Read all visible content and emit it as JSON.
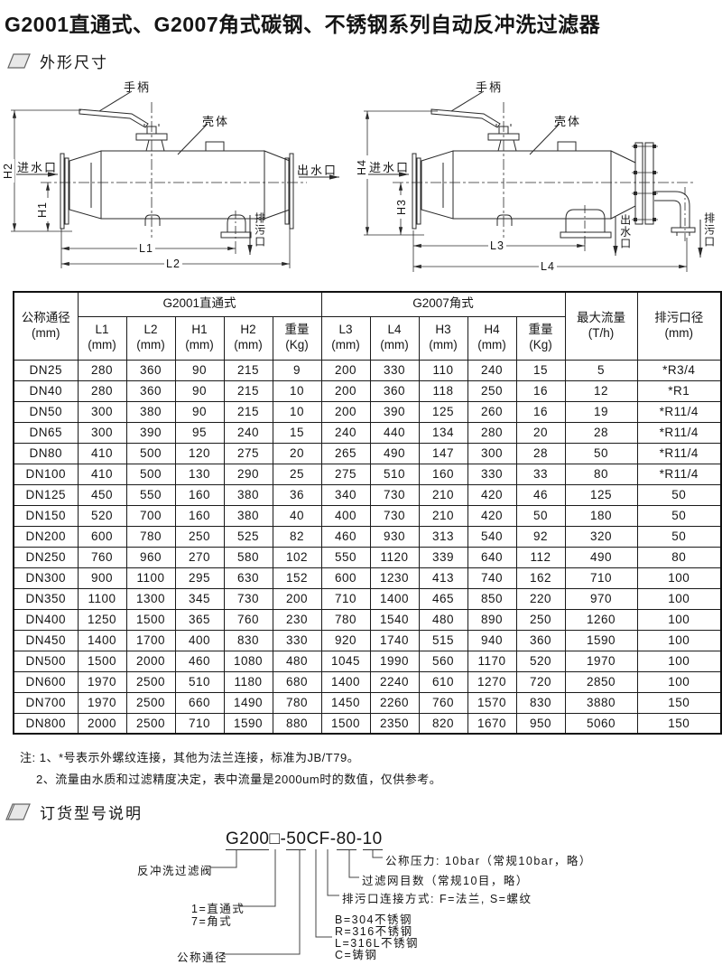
{
  "title": "G2001直通式、G2007角式碳钢、不锈钢系列自动反冲洗过滤器",
  "sections": {
    "dimensions": "外形尺寸",
    "ordering": "订货型号说明"
  },
  "diagrams": {
    "left": {
      "handle": "手柄",
      "shell": "壳体",
      "inlet": "进水口",
      "outlet": "出水口",
      "drain": "排污口",
      "dim_h1": "H1",
      "dim_h2": "H2",
      "dim_l1": "L1",
      "dim_l2": "L2"
    },
    "right": {
      "handle": "手柄",
      "shell": "壳体",
      "inlet": "进水口",
      "outlet": "出水口",
      "drain": "排污口",
      "dim_h3": "H3",
      "dim_h4": "H4",
      "dim_l3": "L3",
      "dim_l4": "L4"
    }
  },
  "table": {
    "nominal_line1": "公称通径",
    "nominal_line2": "(mm)",
    "group1": "G2001直通式",
    "group2": "G2007角式",
    "sub": [
      {
        "label": "L1",
        "unit": "(mm)"
      },
      {
        "label": "L2",
        "unit": "(mm)"
      },
      {
        "label": "H1",
        "unit": "(mm)"
      },
      {
        "label": "H2",
        "unit": "(mm)"
      },
      {
        "label": "重量",
        "unit": "(Kg)"
      },
      {
        "label": "L3",
        "unit": "(mm)"
      },
      {
        "label": "L4",
        "unit": "(mm)"
      },
      {
        "label": "H3",
        "unit": "(mm)"
      },
      {
        "label": "H4",
        "unit": "(mm)"
      },
      {
        "label": "重量",
        "unit": "(Kg)"
      }
    ],
    "maxflow_line1": "最大流量",
    "maxflow_line2": "(T/h)",
    "drain_line1": "排污口径",
    "drain_line2": "(mm)",
    "rows": [
      [
        "DN25",
        "280",
        "360",
        "90",
        "215",
        "9",
        "200",
        "330",
        "110",
        "240",
        "15",
        "5",
        "*R3/4"
      ],
      [
        "DN40",
        "280",
        "360",
        "90",
        "215",
        "10",
        "200",
        "360",
        "118",
        "250",
        "16",
        "12",
        "*R1"
      ],
      [
        "DN50",
        "300",
        "380",
        "90",
        "215",
        "10",
        "200",
        "390",
        "125",
        "260",
        "16",
        "19",
        "*R11/4"
      ],
      [
        "DN65",
        "300",
        "390",
        "95",
        "240",
        "15",
        "240",
        "440",
        "134",
        "280",
        "20",
        "28",
        "*R11/4"
      ],
      [
        "DN80",
        "410",
        "500",
        "120",
        "275",
        "20",
        "265",
        "490",
        "147",
        "300",
        "28",
        "50",
        "*R11/4"
      ],
      [
        "DN100",
        "410",
        "500",
        "130",
        "290",
        "25",
        "275",
        "510",
        "160",
        "330",
        "33",
        "80",
        "*R11/4"
      ],
      [
        "DN125",
        "450",
        "550",
        "160",
        "380",
        "36",
        "340",
        "730",
        "210",
        "420",
        "46",
        "125",
        "50"
      ],
      [
        "DN150",
        "520",
        "700",
        "160",
        "380",
        "40",
        "400",
        "730",
        "210",
        "420",
        "50",
        "180",
        "50"
      ],
      [
        "DN200",
        "600",
        "780",
        "250",
        "525",
        "82",
        "460",
        "930",
        "313",
        "540",
        "92",
        "320",
        "50"
      ],
      [
        "DN250",
        "760",
        "960",
        "270",
        "580",
        "102",
        "550",
        "1120",
        "339",
        "640",
        "112",
        "490",
        "80"
      ],
      [
        "DN300",
        "900",
        "1100",
        "295",
        "630",
        "152",
        "600",
        "1230",
        "413",
        "740",
        "162",
        "710",
        "100"
      ],
      [
        "DN350",
        "1100",
        "1300",
        "345",
        "730",
        "200",
        "710",
        "1400",
        "465",
        "850",
        "220",
        "970",
        "100"
      ],
      [
        "DN400",
        "1250",
        "1500",
        "365",
        "760",
        "230",
        "780",
        "1540",
        "480",
        "890",
        "250",
        "1260",
        "100"
      ],
      [
        "DN450",
        "1400",
        "1700",
        "400",
        "830",
        "330",
        "920",
        "1740",
        "515",
        "940",
        "360",
        "1590",
        "100"
      ],
      [
        "DN500",
        "1500",
        "2000",
        "460",
        "1080",
        "480",
        "1045",
        "1990",
        "560",
        "1170",
        "520",
        "1970",
        "100"
      ],
      [
        "DN600",
        "1970",
        "2500",
        "510",
        "1180",
        "680",
        "1400",
        "2240",
        "610",
        "1270",
        "720",
        "2850",
        "100"
      ],
      [
        "DN700",
        "1970",
        "2500",
        "660",
        "1490",
        "780",
        "1450",
        "2260",
        "760",
        "1570",
        "830",
        "3880",
        "150"
      ],
      [
        "DN800",
        "2000",
        "2500",
        "710",
        "1590",
        "880",
        "1500",
        "2350",
        "820",
        "1670",
        "950",
        "5060",
        "150"
      ]
    ]
  },
  "notes": {
    "line1": "注: 1、*号表示外螺纹连接，其他为法兰连接，标准为JB/T79。",
    "line2": "2、流量由水质和过滤精度决定，表中流量是2000um时的数值，仅供参考。"
  },
  "model": {
    "code": {
      "base": "G200",
      "box": "□",
      "dash1": "-",
      "dn": "50",
      "mat": "C",
      "conn": "F",
      "dash2": "-",
      "mesh": "80",
      "dash3": "-",
      "pressure": "10"
    },
    "labels": {
      "valve": "反冲洗过滤阀",
      "type1": "1=直通式",
      "type7": "7=角式",
      "dn": "公称通径",
      "mat_b": "B=304不锈钢",
      "mat_r": "R=316不锈钢",
      "mat_l": "L=316L不锈钢",
      "mat_c": "C=铸钢",
      "conn": "排污口连接方式: F=法兰, S=螺纹",
      "mesh": "过滤网目数（常规10目，略）",
      "pressure": "公称压力: 10bar（常规10bar，略）"
    }
  },
  "colors": {
    "line": "#2a2a2a",
    "text": "#151515",
    "icon_fill": "#e8e8e8",
    "icon_edge": "#666"
  }
}
